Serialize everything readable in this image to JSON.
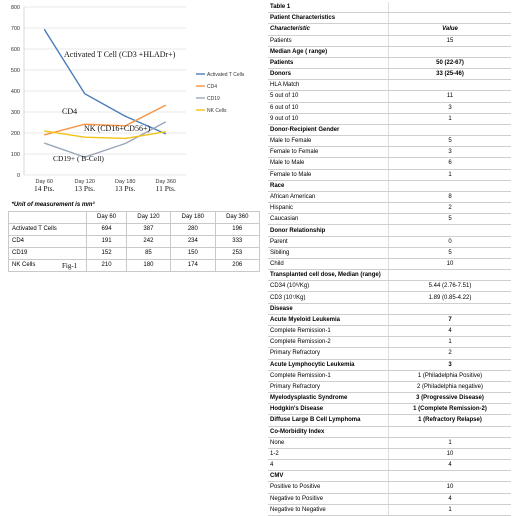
{
  "chart_data": {
    "type": "line",
    "categories": [
      "Day 60",
      "Day 120",
      "Day 180",
      "Day 360"
    ],
    "ylim": [
      0,
      800
    ],
    "yticks": [
      0,
      100,
      200,
      300,
      400,
      500,
      600,
      700,
      800
    ],
    "grid": true,
    "legend_position": "right",
    "series": [
      {
        "name": "Activated T Cells",
        "values": [
          694,
          387,
          280,
          196
        ],
        "color": "#4a7ebb"
      },
      {
        "name": "CD4",
        "values": [
          191,
          242,
          234,
          333
        ],
        "color": "#f79646"
      },
      {
        "name": "CD19",
        "values": [
          152,
          85,
          150,
          253
        ],
        "color": "#9aa7b8"
      },
      {
        "name": "NK Cells",
        "values": [
          210,
          180,
          174,
          206
        ],
        "color": "#f2c314"
      }
    ],
    "annotations": [
      {
        "id": "ann-t",
        "text": "Activated T Cell (CD3 +HLADr+)"
      },
      {
        "id": "ann-cd4",
        "text": "CD4"
      },
      {
        "id": "ann-nk",
        "text": "NK (CD16+CD56+)"
      },
      {
        "id": "ann-cd19",
        "text": "CD19+ ( B-Cell)"
      }
    ],
    "patient_counts": [
      "14 Pts.",
      "13 Pts.",
      "13 Pts.",
      "11 Pts."
    ]
  },
  "data_table": {
    "note": "*Unit of measurement is mm³",
    "headers": [
      "",
      "Day 60",
      "Day 120",
      "Day 180",
      "Day 360"
    ],
    "rows": [
      [
        "Activated T Cells",
        "694",
        "387",
        "280",
        "196"
      ],
      [
        "CD4",
        "191",
        "242",
        "234",
        "333"
      ],
      [
        "CD19",
        "152",
        "85",
        "150",
        "253"
      ],
      [
        "NK Cells",
        "210",
        "180",
        "174",
        "206"
      ]
    ]
  },
  "fig_label": "Fig-1",
  "table1": {
    "rows": [
      {
        "label": "Table 1",
        "value": "",
        "style": "section"
      },
      {
        "label": "Patient Characteristics",
        "value": "",
        "style": "section"
      },
      {
        "label": "Characteristic",
        "value": "Value",
        "style": "head"
      },
      {
        "label": "Patients",
        "value": "15",
        "style": ""
      },
      {
        "label": "Median Age ( range)",
        "value": "",
        "style": "section"
      },
      {
        "label": "Patients",
        "value": "50 (22-67)",
        "style": "section"
      },
      {
        "label": "Donors",
        "value": "33 (25-46)",
        "style": "section"
      },
      {
        "label": "  HLA Match",
        "value": "",
        "style": ""
      },
      {
        "label": "5 out of 10",
        "value": "11",
        "style": ""
      },
      {
        "label": "6 out of 10",
        "value": "3",
        "style": ""
      },
      {
        "label": "9 out of 10",
        "value": "1",
        "style": ""
      },
      {
        "label": "Donor-Recipient Gender",
        "value": "",
        "style": "section"
      },
      {
        "label": "Male to Female",
        "value": "5",
        "style": ""
      },
      {
        "label": "Female to Female",
        "value": "3",
        "style": ""
      },
      {
        "label": "Male to Male",
        "value": "6",
        "style": ""
      },
      {
        "label": "Female to Male",
        "value": "1",
        "style": ""
      },
      {
        "label": "Race",
        "value": "",
        "style": "section"
      },
      {
        "label": "African American",
        "value": "8",
        "style": ""
      },
      {
        "label": "Hispanic",
        "value": "2",
        "style": ""
      },
      {
        "label": "Caucasian",
        "value": "5",
        "style": ""
      },
      {
        "label": "Donor Relationship",
        "value": "",
        "style": "section"
      },
      {
        "label": "Parent",
        "value": "0",
        "style": ""
      },
      {
        "label": "Sibiling",
        "value": "5",
        "style": ""
      },
      {
        "label": "Child",
        "value": "10",
        "style": ""
      },
      {
        "label": "Transplanted cell dose, Median (range)",
        "value": "",
        "style": "section"
      },
      {
        "label": "CD34 (10⁶/Kg)",
        "value": "5.44 (2.76-7.51)",
        "style": ""
      },
      {
        "label": "CD3 (10⁷/Kg)",
        "value": "1.89 (0.85-4.22)",
        "style": ""
      },
      {
        "label": "Disease",
        "value": "",
        "style": "section"
      },
      {
        "label": "Acute Myeloid Leukemia",
        "value": "7",
        "style": "section"
      },
      {
        "label": "Complete Remission-1",
        "value": "4",
        "style": ""
      },
      {
        "label": "Complete Remission-2",
        "value": "1",
        "style": ""
      },
      {
        "label": "Primary Refractory",
        "value": "2",
        "style": ""
      },
      {
        "label": "Acute Lymphocytic Leukemia",
        "value": "3",
        "style": "section"
      },
      {
        "label": "Complete Remission-1",
        "value": "1 (Philadelphia Positive)",
        "style": ""
      },
      {
        "label": "Primary Refractory",
        "value": "2 (Philadelphia negative)",
        "style": ""
      },
      {
        "label": "Myelodysplastic Syndrome",
        "value": "3 (Progressive Disease)",
        "style": "section"
      },
      {
        "label": "Hodgkin's Disease",
        "value": "1 (Complete Remission-2)",
        "style": "section"
      },
      {
        "label": "Diffuse Large B Cell Lymphoma",
        "value": "1 (Refractory Relapse)",
        "style": "section"
      },
      {
        "label": "Co-Morbidity Index",
        "value": "",
        "style": "section"
      },
      {
        "label": "None",
        "value": "1",
        "style": ""
      },
      {
        "label": "1-2",
        "value": "10",
        "style": ""
      },
      {
        "label": "4",
        "value": "4",
        "style": ""
      },
      {
        "label": "CMV",
        "value": "",
        "style": "section"
      },
      {
        "label": "Positive to Positive",
        "value": "10",
        "style": ""
      },
      {
        "label": "Negative to Positive",
        "value": "4",
        "style": ""
      },
      {
        "label": "Negative to Negative",
        "value": "1",
        "style": ""
      }
    ]
  }
}
